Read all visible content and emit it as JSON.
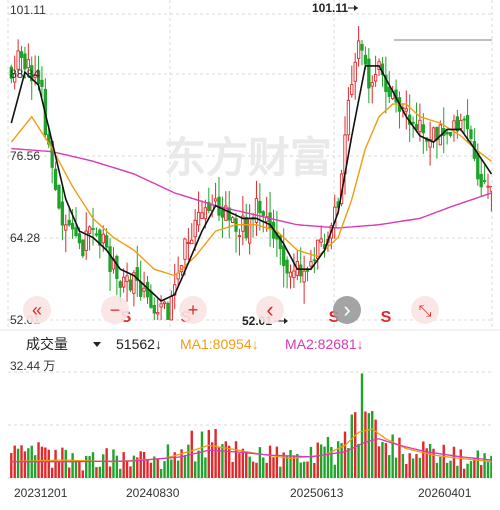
{
  "price_axis": {
    "labels": [
      "101.11",
      "88.84",
      "76.56",
      "64.28",
      "52.01"
    ],
    "values": [
      101.11,
      88.84,
      76.56,
      64.28,
      52.01
    ]
  },
  "annotations": {
    "high": {
      "label": "101.11",
      "value": 101.11
    },
    "low": {
      "label": "52.01",
      "value": 52.01
    }
  },
  "watermark": "东方财富",
  "overlay_buttons": [
    {
      "name": "fast-rewind-button",
      "glyph": "«"
    },
    {
      "name": "zoom-out-button",
      "glyph": "−"
    },
    {
      "name": "zoom-in-button",
      "glyph": "+"
    },
    {
      "name": "prev-button",
      "glyph": "‹"
    },
    {
      "name": "next-button",
      "glyph": "›"
    },
    {
      "name": "expand-button",
      "glyph": "⤡"
    }
  ],
  "sell_markers": {
    "label": "S",
    "color": "#e0292b"
  },
  "volume_header": {
    "indicator": "成交量",
    "vol_value": "51562",
    "ma1_label": "MA1:80954",
    "ma2_label": "MA2:82681",
    "arrow": "↓"
  },
  "volume_axis": {
    "label": "32.44 万",
    "max": 32.44
  },
  "dates": [
    "20231201",
    "20240830",
    "20250613",
    "20260401"
  ],
  "colors": {
    "up": "#e0292b",
    "down": "#1fa32a",
    "ma_short": "#111111",
    "ma_mid": "#f39c12",
    "ma_long": "#d63bb4",
    "grid": "#d9d9d9",
    "axis_text": "#333333"
  },
  "chart_data": {
    "type": "candlestick",
    "y_range": [
      52.01,
      101.11
    ],
    "volume_range": [
      0,
      32.44
    ],
    "price_path": [
      [
        0,
        91
      ],
      [
        3,
        93
      ],
      [
        6,
        92
      ],
      [
        9,
        87
      ],
      [
        12,
        74
      ],
      [
        15,
        67
      ],
      [
        18,
        66
      ],
      [
        21,
        63
      ],
      [
        24,
        66
      ],
      [
        27,
        64
      ],
      [
        30,
        60
      ],
      [
        33,
        58
      ],
      [
        36,
        58
      ],
      [
        39,
        56
      ],
      [
        42,
        54
      ],
      [
        45,
        54
      ],
      [
        48,
        57
      ],
      [
        51,
        62
      ],
      [
        54,
        67
      ],
      [
        57,
        70
      ],
      [
        60,
        71
      ],
      [
        63,
        70
      ],
      [
        66,
        67
      ],
      [
        69,
        67
      ],
      [
        72,
        69
      ],
      [
        75,
        67
      ],
      [
        78,
        64
      ],
      [
        81,
        60
      ],
      [
        84,
        59
      ],
      [
        87,
        61
      ],
      [
        90,
        63
      ],
      [
        93,
        66
      ],
      [
        96,
        72
      ],
      [
        99,
        85
      ],
      [
        102,
        96
      ],
      [
        105,
        91
      ],
      [
        108,
        92
      ],
      [
        111,
        88
      ],
      [
        114,
        86
      ],
      [
        117,
        83
      ],
      [
        120,
        82
      ],
      [
        123,
        79
      ],
      [
        126,
        83
      ],
      [
        129,
        81
      ],
      [
        132,
        84
      ],
      [
        135,
        79
      ],
      [
        138,
        74
      ],
      [
        141,
        72
      ]
    ],
    "volume_path": [
      [
        0,
        6
      ],
      [
        10,
        7
      ],
      [
        20,
        5
      ],
      [
        35,
        6
      ],
      [
        45,
        6
      ],
      [
        50,
        9
      ],
      [
        55,
        11
      ],
      [
        60,
        10
      ],
      [
        70,
        8
      ],
      [
        80,
        6
      ],
      [
        90,
        7
      ],
      [
        95,
        9
      ],
      [
        100,
        15
      ],
      [
        103,
        18
      ],
      [
        106,
        13
      ],
      [
        110,
        9
      ],
      [
        120,
        7
      ],
      [
        130,
        6
      ],
      [
        141,
        5
      ]
    ],
    "ma_short_line": [
      [
        0,
        83
      ],
      [
        4,
        91
      ],
      [
        8,
        89
      ],
      [
        12,
        80
      ],
      [
        16,
        71
      ],
      [
        20,
        66
      ],
      [
        24,
        65
      ],
      [
        28,
        63
      ],
      [
        32,
        60
      ],
      [
        36,
        59
      ],
      [
        40,
        57
      ],
      [
        44,
        55
      ],
      [
        48,
        56
      ],
      [
        52,
        61
      ],
      [
        56,
        66
      ],
      [
        60,
        70
      ],
      [
        64,
        69
      ],
      [
        68,
        68
      ],
      [
        72,
        68
      ],
      [
        76,
        67
      ],
      [
        80,
        64
      ],
      [
        84,
        60
      ],
      [
        88,
        60
      ],
      [
        92,
        63
      ],
      [
        96,
        69
      ],
      [
        100,
        81
      ],
      [
        104,
        92
      ],
      [
        108,
        92
      ],
      [
        112,
        88
      ],
      [
        116,
        84
      ],
      [
        120,
        81
      ],
      [
        124,
        80
      ],
      [
        128,
        82
      ],
      [
        132,
        82
      ],
      [
        136,
        79
      ],
      [
        141,
        75
      ]
    ],
    "ma_mid_line": [
      [
        0,
        80
      ],
      [
        6,
        84
      ],
      [
        12,
        79
      ],
      [
        18,
        73
      ],
      [
        24,
        68
      ],
      [
        30,
        65
      ],
      [
        36,
        63
      ],
      [
        42,
        60
      ],
      [
        48,
        59
      ],
      [
        54,
        62
      ],
      [
        60,
        66
      ],
      [
        66,
        67
      ],
      [
        72,
        67
      ],
      [
        78,
        66
      ],
      [
        84,
        63
      ],
      [
        90,
        62
      ],
      [
        96,
        65
      ],
      [
        100,
        71
      ],
      [
        104,
        79
      ],
      [
        108,
        84
      ],
      [
        112,
        86
      ],
      [
        116,
        86
      ],
      [
        120,
        84
      ],
      [
        126,
        83
      ],
      [
        132,
        81
      ],
      [
        136,
        79
      ],
      [
        141,
        77
      ]
    ],
    "ma_long_line": [
      [
        0,
        79
      ],
      [
        12,
        78.5
      ],
      [
        24,
        77
      ],
      [
        36,
        75
      ],
      [
        48,
        72
      ],
      [
        60,
        70
      ],
      [
        72,
        68.5
      ],
      [
        84,
        67
      ],
      [
        96,
        66.5
      ],
      [
        108,
        67
      ],
      [
        120,
        68
      ],
      [
        130,
        70
      ],
      [
        141,
        72
      ]
    ],
    "vol_ma1_line": [
      [
        0,
        5
      ],
      [
        15,
        5.5
      ],
      [
        30,
        5
      ],
      [
        45,
        6
      ],
      [
        52,
        8
      ],
      [
        58,
        10
      ],
      [
        64,
        9
      ],
      [
        72,
        7.5
      ],
      [
        82,
        6
      ],
      [
        92,
        7
      ],
      [
        98,
        10
      ],
      [
        102,
        14
      ],
      [
        106,
        15
      ],
      [
        110,
        12
      ],
      [
        116,
        9
      ],
      [
        124,
        7
      ],
      [
        132,
        6
      ],
      [
        141,
        5
      ]
    ],
    "vol_ma2_line": [
      [
        0,
        5
      ],
      [
        18,
        5
      ],
      [
        36,
        5.2
      ],
      [
        50,
        6.5
      ],
      [
        58,
        8.5
      ],
      [
        66,
        8
      ],
      [
        76,
        7
      ],
      [
        88,
        6.5
      ],
      [
        98,
        8
      ],
      [
        104,
        11
      ],
      [
        108,
        12
      ],
      [
        114,
        10
      ],
      [
        122,
        8
      ],
      [
        132,
        6.5
      ],
      [
        141,
        5.5
      ]
    ]
  }
}
